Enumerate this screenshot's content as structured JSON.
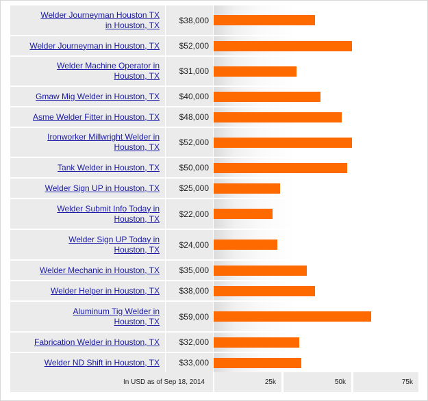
{
  "chart_data": {
    "type": "bar",
    "orientation": "horizontal",
    "categories": [
      "Welder Journeyman Houston TX in Houston, TX",
      "Welder Journeyman in Houston, TX",
      "Welder Machine Operator in Houston, TX",
      "Gmaw Mig Welder in Houston, TX",
      "Asme Welder Fitter in Houston, TX",
      "Ironworker Millwright Welder in Houston, TX",
      "Tank Welder in Houston, TX",
      "Welder Sign UP in Houston, TX",
      "Welder Submit Info Today in Houston, TX",
      "Welder Sign UP Today in Houston, TX",
      "Welder Mechanic in Houston, TX",
      "Welder Helper in Houston, TX",
      "Aluminum Tig Welder in Houston, TX",
      "Fabrication Welder in Houston, TX",
      "Welder ND Shift in Houston, TX"
    ],
    "values": [
      38000,
      52000,
      31000,
      40000,
      48000,
      52000,
      50000,
      25000,
      22000,
      24000,
      35000,
      38000,
      59000,
      32000,
      33000
    ],
    "value_labels": [
      "$38,000",
      "$52,000",
      "$31,000",
      "$40,000",
      "$48,000",
      "$52,000",
      "$50,000",
      "$25,000",
      "$22,000",
      "$24,000",
      "$35,000",
      "$38,000",
      "$59,000",
      "$32,000",
      "$33,000"
    ],
    "xlim": [
      0,
      75000
    ],
    "xticks": [
      25000,
      50000,
      75000
    ],
    "xtick_labels": [
      "25k",
      "50k",
      "75k"
    ],
    "axis_note": "In USD as of Sep 18, 2014",
    "bar_color": "#ff6a00"
  }
}
